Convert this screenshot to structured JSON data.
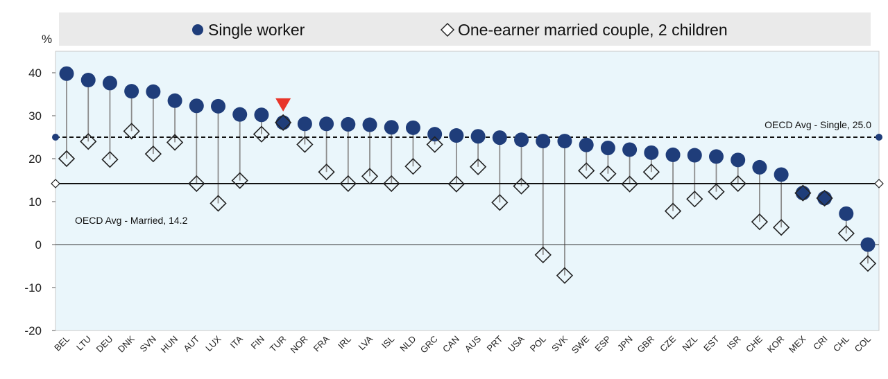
{
  "chart_data": {
    "type": "scatter",
    "ylabel": "%",
    "ylim": [
      -20,
      45
    ],
    "yticks": [
      -20,
      -10,
      0,
      10,
      20,
      30,
      40
    ],
    "categories": [
      "BEL",
      "LTU",
      "DEU",
      "DNK",
      "SVN",
      "HUN",
      "AUT",
      "LUX",
      "ITA",
      "FIN",
      "TUR",
      "NOR",
      "FRA",
      "IRL",
      "LVA",
      "ISL",
      "NLD",
      "GRC",
      "CAN",
      "AUS",
      "PRT",
      "USA",
      "POL",
      "SVK",
      "SWE",
      "ESP",
      "JPN",
      "GBR",
      "CZE",
      "NZL",
      "EST",
      "ISR",
      "CHE",
      "KOR",
      "MEX",
      "CRI",
      "CHL",
      "COL"
    ],
    "highlight_category": "TUR",
    "series": [
      {
        "name": "Single worker",
        "marker": "circle",
        "color": "#1f3d7a",
        "values": [
          39.8,
          38.3,
          37.6,
          35.7,
          35.6,
          33.5,
          32.3,
          32.2,
          30.3,
          30.2,
          28.4,
          28.1,
          28.1,
          28.0,
          27.9,
          27.3,
          27.2,
          25.7,
          25.4,
          25.2,
          24.9,
          24.4,
          24.1,
          24.1,
          23.2,
          22.5,
          22.1,
          21.4,
          20.9,
          20.8,
          20.5,
          19.7,
          18.0,
          16.3,
          12.0,
          10.8,
          7.2,
          0.0
        ]
      },
      {
        "name": "One-earner married couple, 2 children",
        "marker": "diamond",
        "color": "#ffffff",
        "values": [
          20.0,
          24.0,
          19.8,
          26.4,
          21.1,
          23.8,
          14.2,
          9.6,
          14.9,
          25.7,
          28.4,
          23.3,
          16.9,
          14.2,
          15.9,
          14.2,
          18.2,
          23.3,
          14.1,
          18.1,
          9.8,
          13.6,
          -2.4,
          -7.2,
          17.2,
          16.5,
          14.1,
          16.9,
          7.8,
          10.6,
          12.3,
          14.2,
          5.3,
          4.0,
          12.0,
          10.8,
          2.6,
          -4.4
        ]
      }
    ],
    "reference_lines": [
      {
        "label": "OECD Avg - Single, 25.0",
        "value": 25.0,
        "style": "dashed"
      },
      {
        "label": "OECD Avg - Married, 14.2",
        "value": 14.2,
        "style": "solid"
      }
    ],
    "legend_placement": "top",
    "grid": false,
    "colors": {
      "plot_bg": "#eaf6fb",
      "legend_bg": "#eaeaea",
      "single": "#1f3d7a",
      "highlight": "#e8352a",
      "stem": "#8c8c8c"
    }
  }
}
